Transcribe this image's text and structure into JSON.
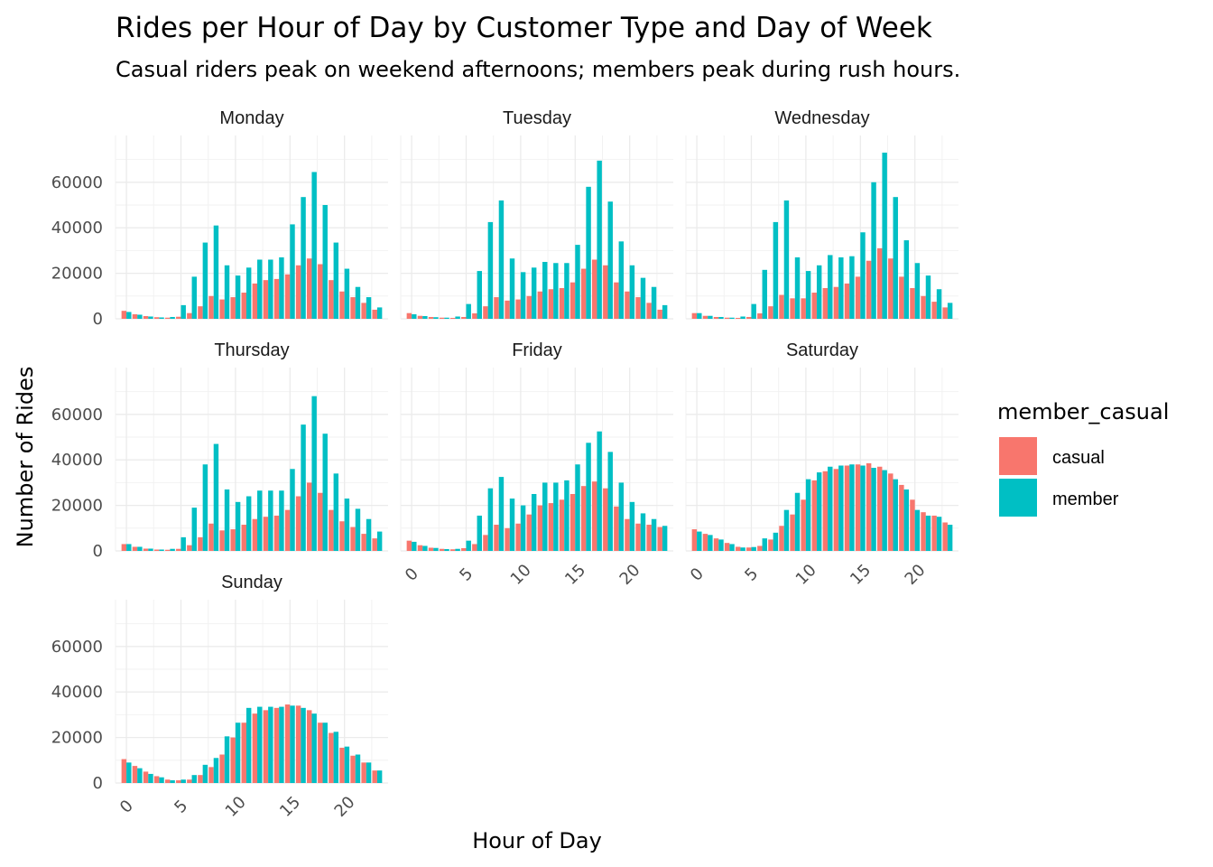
{
  "chart_data": {
    "type": "bar",
    "title": "Rides per Hour of Day by Customer Type and Day of Week",
    "subtitle": "Casual riders peak on weekend afternoons; members peak during rush hours.",
    "xlabel": "Hour of Day",
    "ylabel": "Number of Rides",
    "x": [
      0,
      1,
      2,
      3,
      4,
      5,
      6,
      7,
      8,
      9,
      10,
      11,
      12,
      13,
      14,
      15,
      16,
      17,
      18,
      19,
      20,
      21,
      22,
      23
    ],
    "x_ticks": [
      0,
      5,
      10,
      15,
      20
    ],
    "y_ticks": [
      0,
      20000,
      40000,
      60000
    ],
    "ylim": [
      0,
      75000
    ],
    "grid": true,
    "legend": {
      "title": "member_casual",
      "position": "right",
      "entries": [
        {
          "name": "casual",
          "color": "#F8766D"
        },
        {
          "name": "member",
          "color": "#00BFC4"
        }
      ]
    },
    "facets": [
      {
        "name": "Monday",
        "casual": [
          3500,
          2000,
          1200,
          700,
          500,
          900,
          2500,
          5500,
          10000,
          8500,
          9500,
          11500,
          15500,
          17000,
          17500,
          19500,
          23500,
          26500,
          24000,
          17000,
          12000,
          9500,
          7000,
          4000
        ],
        "member": [
          3000,
          1800,
          1000,
          600,
          800,
          6000,
          18500,
          33500,
          41000,
          23500,
          19000,
          22500,
          26000,
          26000,
          27000,
          41500,
          53500,
          64500,
          50000,
          33500,
          22000,
          14000,
          9500,
          5000
        ]
      },
      {
        "name": "Tuesday",
        "casual": [
          2500,
          1300,
          800,
          500,
          400,
          800,
          2400,
          5500,
          9500,
          8000,
          8500,
          10000,
          12000,
          13000,
          13500,
          16000,
          22000,
          26000,
          23500,
          16000,
          12000,
          9500,
          7000,
          4000
        ],
        "member": [
          2000,
          1200,
          700,
          500,
          1000,
          6500,
          21000,
          42500,
          52000,
          26500,
          20500,
          22500,
          25000,
          24500,
          24500,
          32500,
          58000,
          69500,
          51500,
          34000,
          23500,
          18000,
          14000,
          6000
        ]
      },
      {
        "name": "Wednesday",
        "casual": [
          2500,
          1300,
          800,
          500,
          400,
          800,
          2400,
          5500,
          10500,
          9000,
          9000,
          11500,
          13500,
          14000,
          15500,
          18500,
          25500,
          31000,
          26500,
          18500,
          13500,
          10000,
          7500,
          5000
        ],
        "member": [
          2500,
          1300,
          800,
          500,
          1000,
          6500,
          21500,
          42500,
          52000,
          27000,
          21000,
          23500,
          28000,
          27000,
          27500,
          38000,
          60000,
          73000,
          53500,
          34500,
          24500,
          19000,
          13000,
          7000
        ]
      },
      {
        "name": "Thursday",
        "casual": [
          3000,
          1800,
          1000,
          600,
          500,
          900,
          2500,
          6000,
          12000,
          9000,
          9500,
          11500,
          14000,
          15000,
          15500,
          18000,
          24000,
          30000,
          25500,
          18000,
          13000,
          10500,
          7500,
          5500
        ],
        "member": [
          3000,
          1800,
          1000,
          600,
          900,
          6000,
          19000,
          38000,
          47000,
          27000,
          21500,
          24000,
          26500,
          26500,
          26500,
          36000,
          55500,
          68000,
          51500,
          34000,
          23000,
          18500,
          14000,
          8500
        ]
      },
      {
        "name": "Friday",
        "casual": [
          4500,
          2500,
          1400,
          900,
          700,
          1200,
          3000,
          7000,
          11500,
          10000,
          12000,
          16000,
          20000,
          21000,
          22500,
          25000,
          28500,
          30500,
          27500,
          19500,
          14000,
          12000,
          11500,
          10500
        ],
        "member": [
          4000,
          2200,
          1300,
          800,
          900,
          4500,
          15500,
          27500,
          32500,
          23000,
          20000,
          25000,
          30000,
          30000,
          31000,
          38000,
          47500,
          52500,
          43500,
          30000,
          21500,
          16500,
          14000,
          11000
        ]
      },
      {
        "name": "Saturday",
        "casual": [
          9500,
          7500,
          5500,
          3500,
          1800,
          1500,
          2200,
          5000,
          11000,
          16000,
          22500,
          31000,
          35000,
          36000,
          37500,
          38000,
          38500,
          37000,
          34000,
          29000,
          22500,
          17000,
          15500,
          12500
        ],
        "member": [
          8500,
          7000,
          5000,
          3000,
          1500,
          1700,
          5500,
          8000,
          18000,
          25500,
          31500,
          34500,
          37000,
          37500,
          38000,
          37500,
          36500,
          35500,
          31500,
          27000,
          18000,
          15500,
          15000,
          11500
        ]
      },
      {
        "name": "Sunday",
        "casual": [
          10500,
          7500,
          5000,
          3000,
          1500,
          1200,
          1500,
          3500,
          7000,
          12500,
          20000,
          26500,
          30500,
          32000,
          33000,
          34500,
          34000,
          32000,
          26500,
          22000,
          15500,
          12000,
          9000,
          5500
        ],
        "member": [
          9000,
          6500,
          4000,
          2500,
          1200,
          1500,
          3500,
          8000,
          11000,
          20500,
          26500,
          33000,
          33500,
          33500,
          33500,
          34000,
          33000,
          30500,
          26500,
          22500,
          16000,
          12500,
          9000,
          5500
        ]
      }
    ]
  }
}
